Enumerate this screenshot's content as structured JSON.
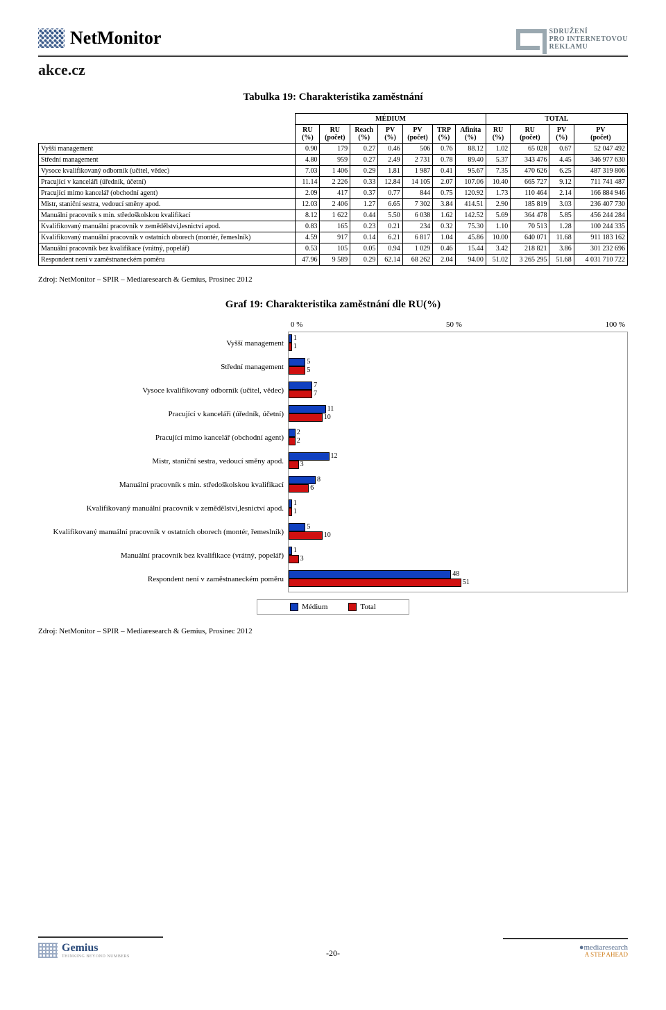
{
  "header": {
    "brand": "NetMonitor",
    "spir_line1": "SDRUŽENÍ",
    "spir_line2": "PRO INTERNETOVOU",
    "spir_line3": "REKLAMU"
  },
  "site_name": "akce.cz",
  "table": {
    "title": "Tabulka 19: Charakteristika zaměstnání",
    "group_medium": "MÉDIUM",
    "group_total": "TOTAL",
    "cols": [
      "RU (%)",
      "RU (počet)",
      "Reach (%)",
      "PV (%)",
      "PV (počet)",
      "TRP (%)",
      "Afinita (%)",
      "RU (%)",
      "RU (počet)",
      "PV (%)",
      "PV (počet)"
    ],
    "rows": [
      {
        "label": "Vyšší management",
        "v": [
          "0.90",
          "179",
          "0.27",
          "0.46",
          "506",
          "0.76",
          "88.12",
          "1.02",
          "65 028",
          "0.67",
          "52 047 492"
        ]
      },
      {
        "label": "Střední management",
        "v": [
          "4.80",
          "959",
          "0.27",
          "2.49",
          "2 731",
          "0.78",
          "89.40",
          "5.37",
          "343 476",
          "4.45",
          "346 977 630"
        ]
      },
      {
        "label": "Vysoce kvalifikovaný odborník (učitel, vědec)",
        "v": [
          "7.03",
          "1 406",
          "0.29",
          "1.81",
          "1 987",
          "0.41",
          "95.67",
          "7.35",
          "470 626",
          "6.25",
          "487 319 806"
        ]
      },
      {
        "label": "Pracující v kanceláři (úředník, účetní)",
        "v": [
          "11.14",
          "2 226",
          "0.33",
          "12.84",
          "14 105",
          "2.07",
          "107.06",
          "10.40",
          "665 727",
          "9.12",
          "711 741 487"
        ]
      },
      {
        "label": "Pracující mimo kancelář (obchodní agent)",
        "v": [
          "2.09",
          "417",
          "0.37",
          "0.77",
          "844",
          "0.75",
          "120.92",
          "1.73",
          "110 464",
          "2.14",
          "166 884 946"
        ]
      },
      {
        "label": "Mistr, staniční sestra, vedoucí směny apod.",
        "v": [
          "12.03",
          "2 406",
          "1.27",
          "6.65",
          "7 302",
          "3.84",
          "414.51",
          "2.90",
          "185 819",
          "3.03",
          "236 407 730"
        ]
      },
      {
        "label": "Manuální pracovník s min. středoškolskou kvalifikací",
        "v": [
          "8.12",
          "1 622",
          "0.44",
          "5.50",
          "6 038",
          "1.62",
          "142.52",
          "5.69",
          "364 478",
          "5.85",
          "456 244 284"
        ]
      },
      {
        "label": "Kvalifikovaný manuální pracovník v zemědělství,lesnictví apod.",
        "v": [
          "0.83",
          "165",
          "0.23",
          "0.21",
          "234",
          "0.32",
          "75.30",
          "1.10",
          "70 513",
          "1.28",
          "100 244 335"
        ]
      },
      {
        "label": "Kvalifikovaný manuální pracovník v ostatních oborech (montér, řemeslník)",
        "v": [
          "4.59",
          "917",
          "0.14",
          "6.21",
          "6 817",
          "1.04",
          "45.86",
          "10.00",
          "640 071",
          "11.68",
          "911 183 162"
        ]
      },
      {
        "label": "Manuální pracovník bez kvalifikace (vrátný, popelář)",
        "v": [
          "0.53",
          "105",
          "0.05",
          "0.94",
          "1 029",
          "0.46",
          "15.44",
          "3.42",
          "218 821",
          "3.86",
          "301 232 696"
        ]
      },
      {
        "label": "Respondent není v zaměstnaneckém poměru",
        "v": [
          "47.96",
          "9 589",
          "0.29",
          "62.14",
          "68 262",
          "2.04",
          "94.00",
          "51.02",
          "3 265 295",
          "51.68",
          "4 031 710 722"
        ]
      }
    ]
  },
  "source": "Zdroj: NetMonitor – SPIR – Mediaresearch & Gemius, Prosinec 2012",
  "chart": {
    "title": "Graf 19: Charakteristika zaměstnání dle RU(%)",
    "axis": {
      "min": "0 %",
      "mid": "50 %",
      "max": "100 %",
      "range": 100
    },
    "colors": {
      "medium": "#1040c0",
      "total": "#d01010",
      "border": "#000000",
      "grid": "#999999",
      "bg": "#ffffff"
    },
    "legend": {
      "medium": "Médium",
      "total": "Total"
    },
    "items": [
      {
        "label": "Vyšší management",
        "m": 1,
        "t": 1
      },
      {
        "label": "Střední management",
        "m": 5,
        "t": 5
      },
      {
        "label": "Vysoce kvalifikovaný odborník (učitel, vědec)",
        "m": 7,
        "t": 7
      },
      {
        "label": "Pracující v kanceláři (úředník, účetní)",
        "m": 11,
        "t": 10
      },
      {
        "label": "Pracující mimo kancelář (obchodní agent)",
        "m": 2,
        "t": 2
      },
      {
        "label": "Mistr, staniční sestra, vedoucí směny apod.",
        "m": 12,
        "t": 3
      },
      {
        "label": "Manuální pracovník s min. středoškolskou kvalifikací",
        "m": 8,
        "t": 6
      },
      {
        "label": "Kvalifikovaný manuální pracovník v zemědělství,lesnictví apod.",
        "m": 1,
        "t": 1
      },
      {
        "label": "Kvalifikovaný manuální pracovník v ostatních oborech (montér, řemeslník)",
        "m": 5,
        "t": 10
      },
      {
        "label": "Manuální pracovník bez kvalifikace (vrátný, popelář)",
        "m": 1,
        "t": 3
      },
      {
        "label": "Respondent není v zaměstnaneckém poměru",
        "m": 48,
        "t": 51
      }
    ]
  },
  "footer": {
    "page": "-20-",
    "gemius": "Gemius",
    "gemius_sub": "THINKING BEYOND NUMBERS",
    "mr1": "mediaresearch",
    "mr2": "A STEP AHEAD"
  }
}
